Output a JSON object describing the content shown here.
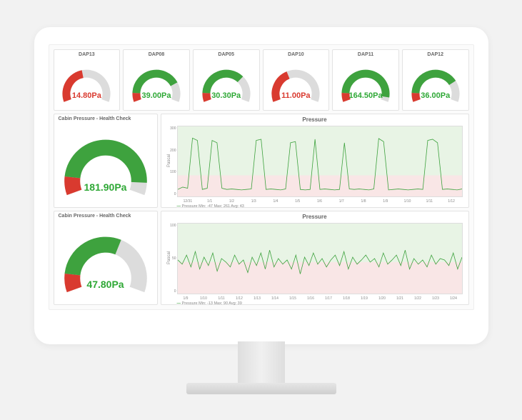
{
  "colors": {
    "green": "#3ea23e",
    "red": "#d93a2f",
    "track": "#dcdcdc",
    "text_green": "#2fa836",
    "text_red": "#d93a2f",
    "chart_bg_good": "#e8f4e5",
    "chart_bg_bad": "#f9e6e6",
    "grid": "#dddddd"
  },
  "gauges": [
    {
      "id": "DAP13",
      "value": "14.80Pa",
      "fill_pct": 45,
      "red_start_pct": 0,
      "value_color": "#d93a2f"
    },
    {
      "id": "DAP08",
      "value": "39.00Pa",
      "fill_pct": 78,
      "red_start_pct": 0,
      "value_color": "#2fa836"
    },
    {
      "id": "DAP05",
      "value": "30.30Pa",
      "fill_pct": 70,
      "red_start_pct": 0,
      "value_color": "#2fa836"
    },
    {
      "id": "DAP10",
      "value": "11.00Pa",
      "fill_pct": 40,
      "red_start_pct": 0,
      "value_color": "#d93a2f"
    },
    {
      "id": "DAP11",
      "value": "164.50Pa",
      "fill_pct": 95,
      "red_start_pct": 0,
      "value_color": "#2fa836"
    },
    {
      "id": "DAP12",
      "value": "36.00Pa",
      "fill_pct": 76,
      "red_start_pct": 0,
      "value_color": "#2fa836"
    }
  ],
  "big_gauges": [
    {
      "title": "Cabin Pressure - Health Check",
      "value": "181.90Pa",
      "fill_pct": 92,
      "red_start_pct": 0,
      "red_end_pct": 12,
      "value_color": "#2fa836"
    },
    {
      "title": "Cabin Pressure - Health Check",
      "value": "47.80Pa",
      "fill_pct": 60,
      "red_start_pct": 0,
      "red_end_pct": 12,
      "value_color": "#2fa836"
    }
  ],
  "charts": [
    {
      "title": "Pressure",
      "ylabel": "Pascal",
      "ylim": [
        0,
        300
      ],
      "yticks": [
        "300",
        "200",
        "100",
        "0"
      ],
      "xticks": [
        "12/31",
        "1/1",
        "1/2",
        "1/3",
        "1/4",
        "1/5",
        "1/6",
        "1/7",
        "1/8",
        "1/9",
        "1/10",
        "1/11",
        "1/12"
      ],
      "legend": "Pressure  Min: -47  Max: 261  Avg: 43",
      "threshold_pct": 70,
      "data": [
        30,
        40,
        35,
        250,
        240,
        30,
        35,
        240,
        230,
        35,
        30,
        32,
        30,
        28,
        30,
        32,
        240,
        245,
        30,
        32,
        30,
        28,
        32,
        230,
        235,
        30,
        28,
        30,
        245,
        30,
        32,
        30,
        28,
        30,
        230,
        32,
        30,
        32,
        30,
        28,
        32,
        248,
        235,
        28,
        30,
        32,
        30,
        28,
        30,
        32,
        30,
        240,
        245,
        230,
        30,
        32,
        30,
        28,
        32
      ],
      "ymax": 300
    },
    {
      "title": "Pressure",
      "ylabel": "Pascal",
      "ylim": [
        0,
        100
      ],
      "yticks": [
        "100",
        "50",
        "0"
      ],
      "xticks": [
        "1/9",
        "1/10",
        "1/11",
        "1/12",
        "1/13",
        "1/14",
        "1/15",
        "1/16",
        "1/17",
        "1/18",
        "1/19",
        "1/20",
        "1/21",
        "1/22",
        "1/23",
        "1/24"
      ],
      "legend": "Pressure  Min: -13  Max: 90  Avg: 39",
      "threshold_pct": 55,
      "data": [
        48,
        42,
        55,
        38,
        60,
        35,
        52,
        40,
        58,
        32,
        50,
        45,
        38,
        55,
        42,
        48,
        30,
        52,
        40,
        58,
        35,
        62,
        38,
        50,
        42,
        48,
        35,
        55,
        28,
        52,
        40,
        58,
        42,
        50,
        38,
        48,
        55,
        40,
        60,
        35,
        52,
        42,
        48,
        55,
        45,
        50,
        38,
        58,
        42,
        48,
        55,
        40,
        62,
        35,
        50,
        42,
        48,
        38,
        55,
        42,
        50,
        48,
        40,
        58,
        35,
        52
      ],
      "ymax": 100
    }
  ]
}
